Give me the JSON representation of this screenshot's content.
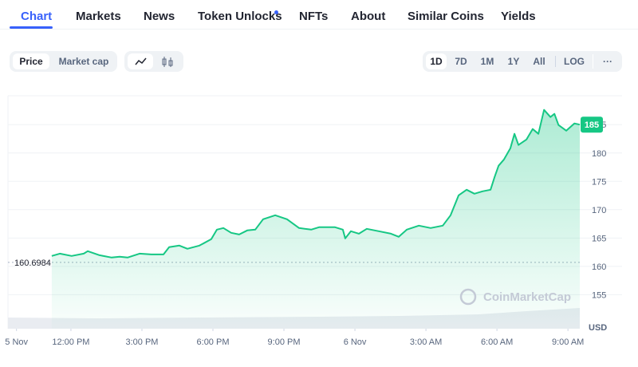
{
  "tabs": [
    "Chart",
    "Markets",
    "News",
    "Token Unlocks",
    "NFTs",
    "About",
    "Similar Coins",
    "Yields"
  ],
  "chart_modes": [
    "Price",
    "Market cap"
  ],
  "ranges": [
    "1D",
    "7D",
    "1M",
    "1Y",
    "All"
  ],
  "scale_button": "LOG",
  "more_button": "···",
  "chart_data": {
    "type": "line",
    "watermark": "CoinMarketCap",
    "y_unit": "USD",
    "open_price": 160.6984,
    "xlim": [
      9.34,
      33.5
    ],
    "ylim": [
      149,
      190.1
    ],
    "yticks": [
      155,
      160,
      165,
      170,
      175,
      180,
      185
    ],
    "xticks": [
      {
        "value": 9.7,
        "label": "5 Nov"
      },
      {
        "value": 12,
        "label": "12:00 PM"
      },
      {
        "value": 15,
        "label": "3:00 PM"
      },
      {
        "value": 18,
        "label": "6:00 PM"
      },
      {
        "value": 21,
        "label": "9:00 PM"
      },
      {
        "value": 24,
        "label": "6 Nov"
      },
      {
        "value": 27,
        "label": "3:00 AM"
      },
      {
        "value": 30,
        "label": "6:00 AM"
      },
      {
        "value": 33,
        "label": "9:00 AM"
      }
    ],
    "grid": true,
    "series": [
      {
        "color": "#16c784",
        "x": [
          11.19,
          11.53,
          12.03,
          12.54,
          12.71,
          13.21,
          13.72,
          14.06,
          14.39,
          14.9,
          15.4,
          15.91,
          16.15,
          16.58,
          16.92,
          17.43,
          17.93,
          18.17,
          18.44,
          18.77,
          19.11,
          19.45,
          19.79,
          20.12,
          20.63,
          21.13,
          21.64,
          22.15,
          22.48,
          23.16,
          23.49,
          23.59,
          23.83,
          24.17,
          24.5,
          25.01,
          25.52,
          25.85,
          26.19,
          26.7,
          27.2,
          27.71,
          28.04,
          28.38,
          28.72,
          29.05,
          29.39,
          29.73,
          29.9,
          30.07,
          30.3,
          30.57,
          30.74,
          30.91,
          31.25,
          31.51,
          31.75,
          31.99,
          32.26,
          32.43,
          32.6,
          32.93,
          33.27,
          33.5
        ],
        "values": [
          161.83,
          162.25,
          161.83,
          162.25,
          162.68,
          161.97,
          161.55,
          161.69,
          161.55,
          162.25,
          162.11,
          162.11,
          163.38,
          163.66,
          163.1,
          163.66,
          164.79,
          166.48,
          166.76,
          165.92,
          165.63,
          166.34,
          166.48,
          168.31,
          169.01,
          168.31,
          166.76,
          166.48,
          166.9,
          166.9,
          166.48,
          164.93,
          166.2,
          165.77,
          166.62,
          166.2,
          165.77,
          165.21,
          166.48,
          167.18,
          166.76,
          167.18,
          169.01,
          172.54,
          173.52,
          172.82,
          173.24,
          173.52,
          175.77,
          177.75,
          178.87,
          180.85,
          183.38,
          181.41,
          182.39,
          184.23,
          183.38,
          187.61,
          186.34,
          186.9,
          184.93,
          183.94,
          185.21,
          185
        ]
      }
    ]
  }
}
